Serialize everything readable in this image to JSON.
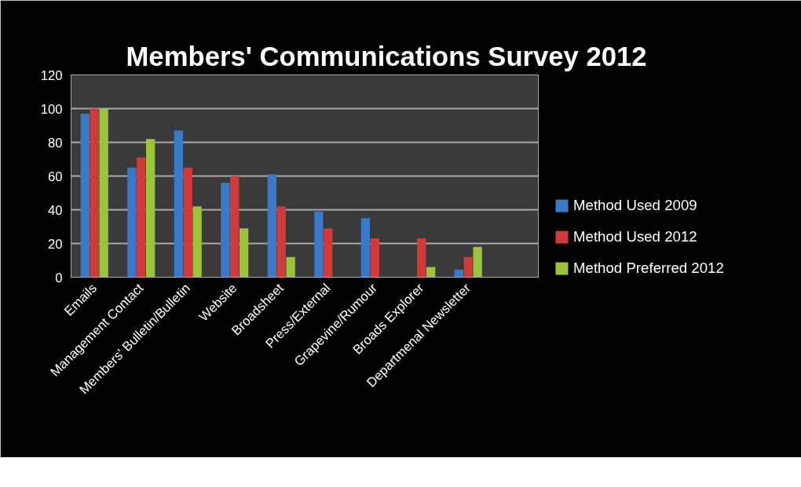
{
  "chart_data": {
    "type": "bar",
    "title": "Members' Communications Survey  2012",
    "categories": [
      "Emails",
      "Management Contact",
      "Members' Bulletin/Bulletin",
      "Website",
      "Broadsheet",
      "Press/External",
      "Grapevine/Rumour",
      "Broads Explorer",
      "Departmenal Newsletter",
      null
    ],
    "series": [
      {
        "name": "Method Used 2009",
        "color": "#3a78c8",
        "values": [
          97,
          65,
          87,
          56,
          61,
          39,
          35,
          null,
          4.5,
          null
        ]
      },
      {
        "name": "Method Used 2012",
        "color": "#d03a3a",
        "values": [
          100,
          71,
          65,
          60,
          42,
          29,
          23,
          23,
          12,
          null
        ]
      },
      {
        "name": "Method Preferred 2012",
        "color": "#9cc43a",
        "values": [
          100,
          82,
          42,
          29,
          12,
          null,
          null,
          6,
          18,
          null
        ]
      }
    ],
    "ylim": [
      0,
      120
    ],
    "yticks": [
      0,
      20,
      40,
      60,
      80,
      100,
      120
    ],
    "grid": "y",
    "legend": "right"
  }
}
